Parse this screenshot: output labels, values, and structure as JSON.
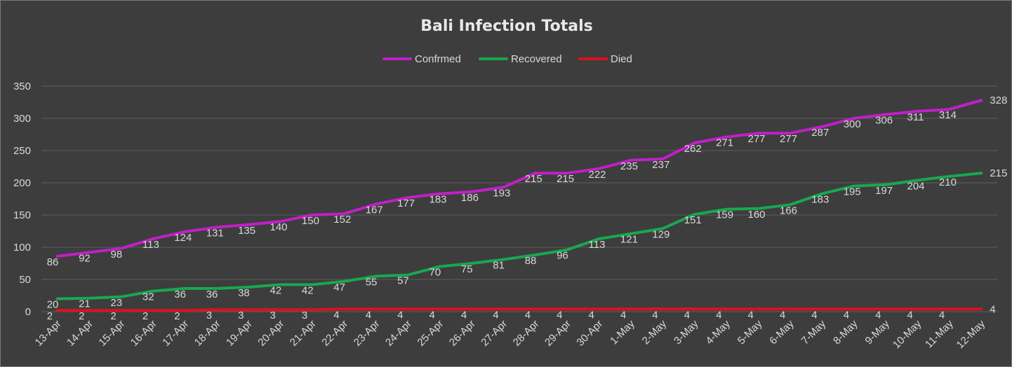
{
  "colors": {
    "background": "#3d3d3d",
    "grid": "#5f5f5f",
    "text": "#d9d9d9"
  },
  "chart_data": {
    "type": "line",
    "title": "Bali Infection Totals",
    "xlabel": "",
    "ylabel": "",
    "ylim": [
      0,
      350
    ],
    "yticks": [
      0,
      50,
      100,
      150,
      200,
      250,
      300,
      350
    ],
    "grid": true,
    "legend": "top-center",
    "categories": [
      "13-Apr",
      "14-Apr",
      "15-Apr",
      "16-Apr",
      "17-Apr",
      "18-Apr",
      "19-Apr",
      "20-Apr",
      "21-Apr",
      "22-Apr",
      "23-Apr",
      "24-Apr",
      "25-Apr",
      "26-Apr",
      "27-Apr",
      "28-Apr",
      "29-Apr",
      "30-Apr",
      "1-May",
      "2-May",
      "3-May",
      "4-May",
      "5-May",
      "6-May",
      "7-May",
      "8-May",
      "9-May",
      "10-May",
      "11-May",
      "12-May"
    ],
    "series": [
      {
        "name": "Confrmed",
        "color": "#c11fc9",
        "values": [
          86,
          92,
          98,
          113,
          124,
          131,
          135,
          140,
          150,
          152,
          167,
          177,
          183,
          186,
          193,
          215,
          215,
          222,
          235,
          237,
          262,
          271,
          277,
          277,
          287,
          300,
          306,
          311,
          314,
          328
        ]
      },
      {
        "name": "Recovered",
        "color": "#18a84f",
        "values": [
          20,
          21,
          23,
          32,
          36,
          36,
          38,
          42,
          42,
          47,
          55,
          57,
          70,
          75,
          81,
          88,
          96,
          113,
          121,
          129,
          151,
          159,
          160,
          166,
          183,
          195,
          197,
          204,
          210,
          215
        ]
      },
      {
        "name": "Died",
        "color": "#e0101a",
        "values": [
          2,
          2,
          2,
          2,
          2,
          3,
          3,
          3,
          3,
          4,
          4,
          4,
          4,
          4,
          4,
          4,
          4,
          4,
          4,
          4,
          4,
          4,
          4,
          4,
          4,
          4,
          4,
          4,
          4,
          4
        ]
      }
    ]
  }
}
